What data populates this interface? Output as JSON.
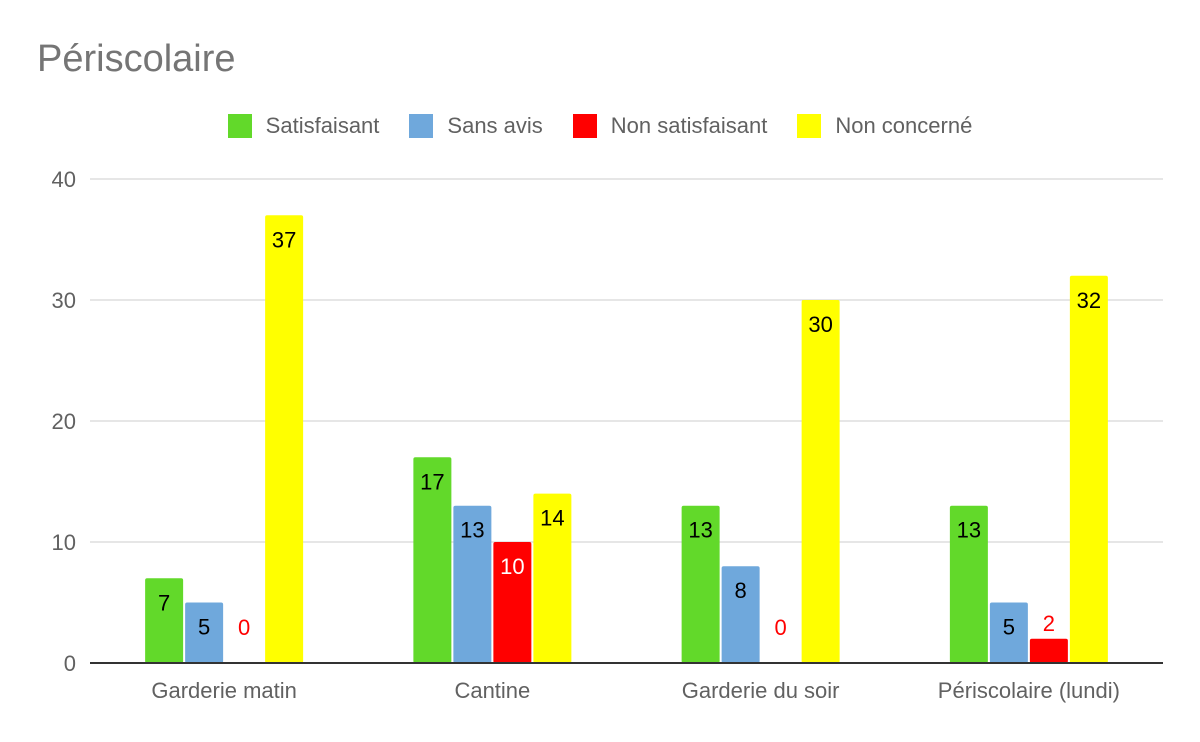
{
  "chart_data": {
    "type": "bar",
    "title": "Périscolaire",
    "categories": [
      "Garderie matin",
      "Cantine",
      "Garderie du soir",
      "Périscolaire (lundi)"
    ],
    "series": [
      {
        "name": "Satisfaisant",
        "color": "#62d92a",
        "values": [
          7,
          17,
          13,
          13
        ]
      },
      {
        "name": "Sans avis",
        "color": "#6fa8dc",
        "values": [
          5,
          13,
          8,
          5
        ]
      },
      {
        "name": "Non satisfaisant",
        "color": "#ff0000",
        "values": [
          0,
          10,
          0,
          2
        ]
      },
      {
        "name": "Non concerné",
        "color": "#ffff00",
        "values": [
          37,
          14,
          30,
          32
        ]
      }
    ],
    "xlabel": "",
    "ylabel": "",
    "ylim": [
      0,
      40
    ],
    "yticks": [
      0,
      10,
      20,
      30,
      40
    ],
    "grid": true,
    "legend_position": "top-center",
    "data_labels": true
  }
}
